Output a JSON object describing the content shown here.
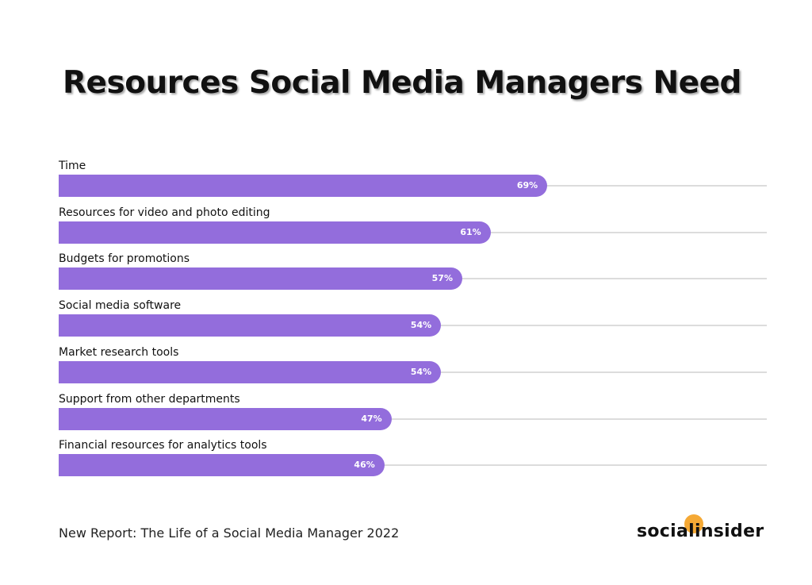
{
  "chart_data": {
    "type": "bar",
    "orientation": "horizontal",
    "title": "Resources Social Media Managers Need",
    "categories": [
      "Time",
      "Resources for video and photo editing",
      "Budgets for promotions",
      "Social media software",
      "Market research tools",
      "Support from other departments",
      "Financial resources for analytics tools"
    ],
    "values": [
      69,
      61,
      57,
      54,
      54,
      47,
      46
    ],
    "value_labels": [
      "69%",
      "61%",
      "57%",
      "54%",
      "54%",
      "47%",
      "46%"
    ],
    "xlim": [
      0,
      100
    ],
    "grid": false,
    "bar_color": "#936ddc",
    "track_color": "#dcdcdc"
  },
  "footer": {
    "source": "New Report: The Life of a Social Media Manager 2022"
  },
  "logo": {
    "text": "socialinsider",
    "dot_color": "#f5a935"
  }
}
